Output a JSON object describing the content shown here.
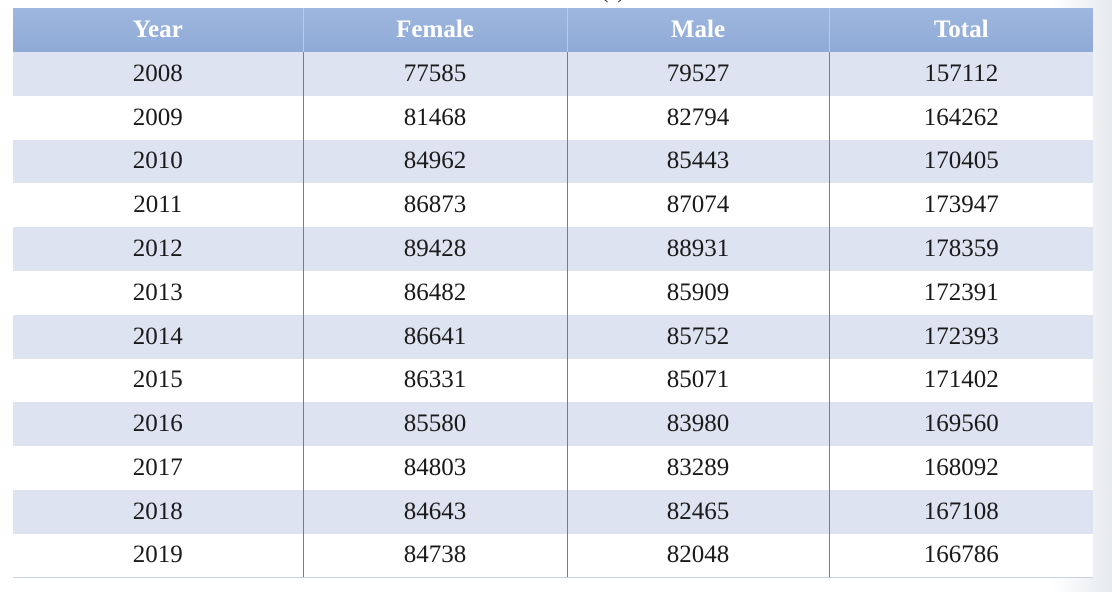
{
  "table": {
    "title_fragment": "(      )",
    "headers": [
      "Year",
      "Female",
      "Male",
      "Total"
    ],
    "rows": [
      [
        "2008",
        "77585",
        "79527",
        "157112"
      ],
      [
        "2009",
        "81468",
        "82794",
        "164262"
      ],
      [
        "2010",
        "84962",
        "85443",
        "170405"
      ],
      [
        "2011",
        "86873",
        "87074",
        "173947"
      ],
      [
        "2012",
        "89428",
        "88931",
        "178359"
      ],
      [
        "2013",
        "86482",
        "85909",
        "172391"
      ],
      [
        "2014",
        "86641",
        "85752",
        "172393"
      ],
      [
        "2015",
        "86331",
        "85071",
        "171402"
      ],
      [
        "2016",
        "85580",
        "83980",
        "169560"
      ],
      [
        "2017",
        "84803",
        "83289",
        "168092"
      ],
      [
        "2018",
        "84643",
        "82465",
        "167108"
      ],
      [
        "2019",
        "84738",
        "82048",
        "166786"
      ]
    ]
  },
  "colors": {
    "header_bg": "#97b1dc",
    "header_text": "#ffffff",
    "row_stripe": "#dde3f0",
    "row_plain": "#ffffff",
    "column_divider": "#5b7fbf"
  }
}
